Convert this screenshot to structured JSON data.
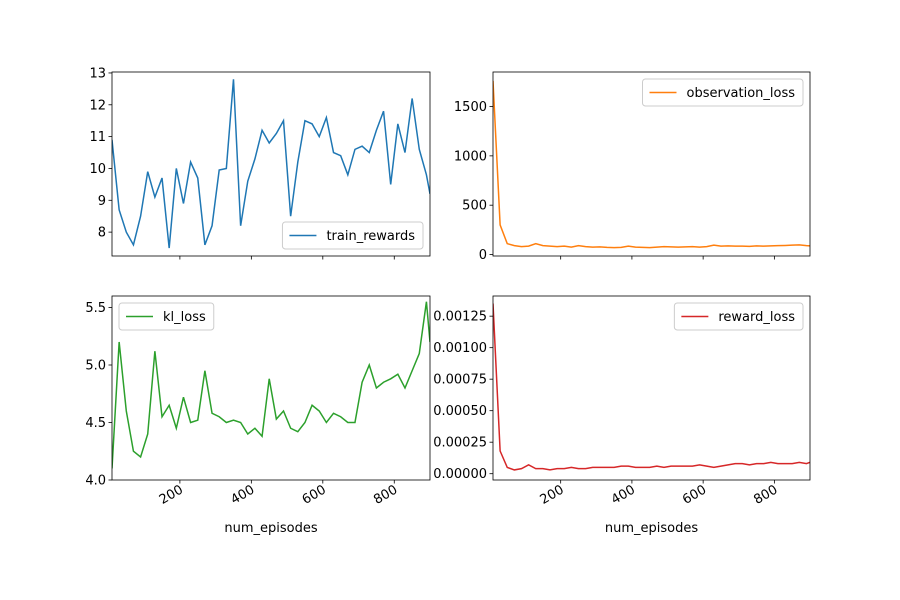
{
  "chart_data": [
    {
      "type": "line",
      "legend": "lower right",
      "x": [
        10,
        30,
        50,
        70,
        90,
        110,
        130,
        150,
        170,
        190,
        210,
        230,
        250,
        270,
        290,
        310,
        330,
        350,
        370,
        390,
        410,
        430,
        450,
        470,
        490,
        510,
        530,
        550,
        570,
        590,
        610,
        630,
        650,
        670,
        690,
        710,
        730,
        750,
        770,
        790,
        810,
        830,
        850,
        870,
        890,
        900
      ],
      "series": [
        {
          "name": "train_rewards",
          "color": "#1f77b4",
          "values": [
            10.9,
            8.7,
            8.0,
            7.6,
            8.5,
            9.9,
            9.1,
            9.7,
            7.5,
            10.0,
            8.9,
            10.2,
            9.7,
            7.6,
            8.2,
            9.95,
            10.0,
            12.8,
            8.2,
            9.6,
            10.3,
            11.2,
            10.8,
            11.1,
            11.5,
            8.5,
            10.2,
            11.5,
            11.4,
            11.0,
            11.6,
            10.5,
            10.4,
            9.8,
            10.6,
            10.7,
            10.5,
            11.2,
            11.8,
            9.5,
            11.4,
            10.5,
            12.2,
            10.6,
            9.8,
            9.2
          ]
        }
      ],
      "xlim": [
        10,
        900
      ],
      "xticks": [
        200,
        400,
        600,
        800
      ],
      "ylim": [
        7.25,
        13.03
      ],
      "yticks": [
        8,
        9,
        10,
        11,
        12,
        13
      ]
    },
    {
      "type": "line",
      "legend": "upper right",
      "x": [
        10,
        30,
        50,
        70,
        90,
        110,
        130,
        150,
        170,
        190,
        210,
        230,
        250,
        270,
        290,
        310,
        330,
        350,
        370,
        390,
        410,
        430,
        450,
        470,
        490,
        510,
        530,
        550,
        570,
        590,
        610,
        630,
        650,
        670,
        690,
        710,
        730,
        750,
        770,
        790,
        810,
        830,
        850,
        870,
        890,
        900
      ],
      "series": [
        {
          "name": "observation_loss",
          "color": "#ff7f0e",
          "values": [
            1760,
            300,
            110,
            90,
            80,
            85,
            110,
            90,
            85,
            80,
            85,
            75,
            90,
            80,
            75,
            78,
            72,
            70,
            72,
            85,
            75,
            72,
            70,
            75,
            80,
            78,
            75,
            78,
            80,
            75,
            80,
            95,
            85,
            88,
            85,
            85,
            82,
            88,
            85,
            88,
            90,
            92,
            95,
            98,
            90,
            88
          ]
        }
      ],
      "xlim": [
        10,
        900
      ],
      "xticks": [
        200,
        400,
        600,
        800
      ],
      "ylim": [
        -15,
        1850
      ],
      "yticks": [
        0,
        500,
        1000,
        1500
      ]
    },
    {
      "type": "line",
      "legend": "upper left",
      "xlabel": "num_episodes",
      "x": [
        10,
        30,
        50,
        70,
        90,
        110,
        130,
        150,
        170,
        190,
        210,
        230,
        250,
        270,
        290,
        310,
        330,
        350,
        370,
        390,
        410,
        430,
        450,
        470,
        490,
        510,
        530,
        550,
        570,
        590,
        610,
        630,
        650,
        670,
        690,
        710,
        730,
        750,
        770,
        790,
        810,
        830,
        850,
        870,
        890,
        900
      ],
      "series": [
        {
          "name": "kl_loss",
          "color": "#2ca02c",
          "values": [
            4.1,
            5.2,
            4.6,
            4.25,
            4.2,
            4.4,
            5.12,
            4.55,
            4.65,
            4.45,
            4.72,
            4.5,
            4.52,
            4.95,
            4.58,
            4.55,
            4.5,
            4.52,
            4.5,
            4.4,
            4.45,
            4.38,
            4.88,
            4.53,
            4.6,
            4.45,
            4.42,
            4.5,
            4.65,
            4.6,
            4.5,
            4.58,
            4.55,
            4.5,
            4.5,
            4.85,
            5.0,
            4.8,
            4.85,
            4.88,
            4.92,
            4.8,
            4.95,
            5.1,
            5.55,
            5.2
          ]
        }
      ],
      "xlim": [
        10,
        900
      ],
      "xticks": [
        200,
        400,
        600,
        800
      ],
      "ylim": [
        4.0,
        5.6
      ],
      "yticks": [
        {
          "value": 4,
          "label": "4.0"
        },
        4.5,
        {
          "value": 5,
          "label": "5.0"
        },
        5.5
      ]
    },
    {
      "type": "line",
      "legend": "upper right",
      "xlabel": "num_episodes",
      "x": [
        10,
        30,
        50,
        70,
        90,
        110,
        130,
        150,
        170,
        190,
        210,
        230,
        250,
        270,
        290,
        310,
        330,
        350,
        370,
        390,
        410,
        430,
        450,
        470,
        490,
        510,
        530,
        550,
        570,
        590,
        610,
        630,
        650,
        670,
        690,
        710,
        730,
        750,
        770,
        790,
        810,
        830,
        850,
        870,
        890,
        900
      ],
      "series": [
        {
          "name": "reward_loss",
          "color": "#d62728",
          "values": [
            0.00135,
            0.00018,
            5e-05,
            3e-05,
            4e-05,
            7e-05,
            4e-05,
            4e-05,
            3e-05,
            4e-05,
            4e-05,
            5e-05,
            4e-05,
            4e-05,
            5e-05,
            5e-05,
            5e-05,
            5e-05,
            6e-05,
            6e-05,
            5e-05,
            5e-05,
            5e-05,
            6e-05,
            5e-05,
            6e-05,
            6e-05,
            6e-05,
            6e-05,
            7e-05,
            6e-05,
            5e-05,
            6e-05,
            7e-05,
            8e-05,
            8e-05,
            7e-05,
            8e-05,
            8e-05,
            9e-05,
            8e-05,
            8e-05,
            8e-05,
            9e-05,
            8e-05,
            9e-05
          ]
        }
      ],
      "xlim": [
        10,
        900
      ],
      "xticks": [
        200,
        400,
        600,
        800
      ],
      "ylim": [
        -5e-05,
        0.00141
      ],
      "yticks": [
        {
          "value": 0,
          "label": "0.00000"
        },
        {
          "value": 0.00025,
          "label": "0.00025"
        },
        {
          "value": 0.0005,
          "label": "0.00050"
        },
        {
          "value": 0.00075,
          "label": "0.00075"
        },
        {
          "value": 0.001,
          "label": "0.00100"
        },
        {
          "value": 0.00125,
          "label": "0.00125"
        }
      ]
    }
  ]
}
